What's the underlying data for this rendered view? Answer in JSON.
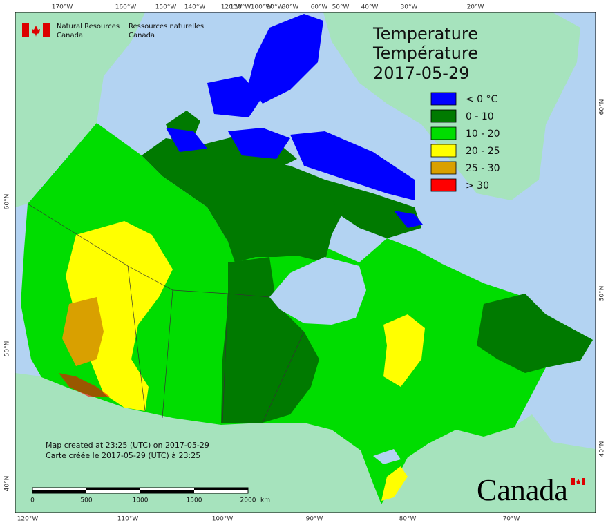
{
  "header": {
    "agency_en": [
      "Natural Resources",
      "Canada"
    ],
    "agency_fr": [
      "Ressources naturelles",
      "Canada"
    ]
  },
  "title": {
    "line_en": "Temperature",
    "line_fr": "Température",
    "date": "2017-05-29"
  },
  "legend": [
    {
      "label": "< 0 °C",
      "color": "#0000ff"
    },
    {
      "label": "0 - 10",
      "color": "#007a00"
    },
    {
      "label": "10 - 20",
      "color": "#00dd00"
    },
    {
      "label": "20 - 25",
      "color": "#ffff00"
    },
    {
      "label": "25 - 30",
      "color": "#d9a000"
    },
    {
      "label": "> 30",
      "color": "#ff0000"
    }
  ],
  "graticule": {
    "top": [
      "170°W",
      "160°W",
      "150°W",
      "140°W",
      "120°W",
      "110°W",
      "100°W",
      "90°W",
      "80°W",
      "60°W",
      "50°W",
      "40°W",
      "30°W",
      "20°W"
    ],
    "bottom": [
      "120°W",
      "110°W",
      "100°W",
      "90°W",
      "80°W",
      "70°W"
    ],
    "left": [
      "60°N",
      "50°N",
      "40°N"
    ],
    "right": [
      "60°N",
      "50°N",
      "40°N"
    ]
  },
  "credits": {
    "en": "Map created at 23:25 (UTC) on 2017-05-29",
    "fr": "Carte créée le 2017-05-29 (UTC) à 23:25"
  },
  "scale_bar": {
    "ticks": [
      "0",
      "500",
      "1000",
      "1500",
      "2000"
    ],
    "unit": "km"
  },
  "wordmark": "Canada"
}
